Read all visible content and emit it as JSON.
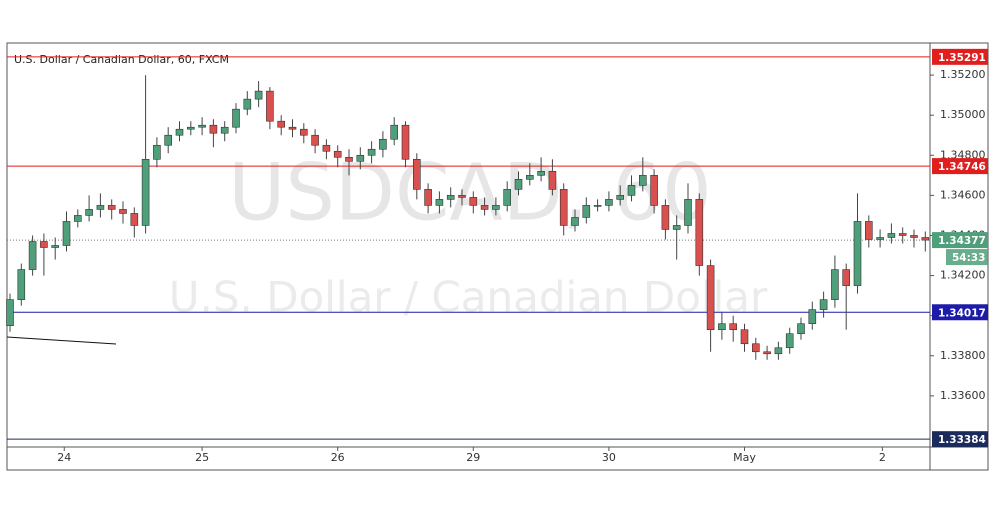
{
  "chart_data": {
    "type": "candlestick",
    "title": "U.S. Dollar / Canadian Dollar, 60, FXCM",
    "watermark": [
      "USDCAD, 60",
      "U.S. Dollar / Canadian Dollar"
    ],
    "up_color": "#4f9f7a",
    "down_color": "#d9504f",
    "ylim": [
      1.3335,
      1.3536
    ],
    "yticks": [
      {
        "value": 1.336,
        "label": "1.33600"
      },
      {
        "value": 1.338,
        "label": "1.33800"
      },
      {
        "value": 1.34,
        "label": "1.34000"
      },
      {
        "value": 1.342,
        "label": "1.34200"
      },
      {
        "value": 1.344,
        "label": "1.34400"
      },
      {
        "value": 1.346,
        "label": "1.34600"
      },
      {
        "value": 1.348,
        "label": "1.34800"
      },
      {
        "value": 1.35,
        "label": "1.35000"
      },
      {
        "value": 1.352,
        "label": "1.35200"
      }
    ],
    "xticks": [
      {
        "value": 4.8,
        "label": "24"
      },
      {
        "value": 17,
        "label": "25"
      },
      {
        "value": 29,
        "label": "26"
      },
      {
        "value": 41,
        "label": "29"
      },
      {
        "value": 53,
        "label": "30"
      },
      {
        "value": 65,
        "label": "May"
      },
      {
        "value": 77.2,
        "label": "2"
      }
    ],
    "grid": false,
    "levels": [
      {
        "value": 1.35291,
        "color": "#e01e1e"
      },
      {
        "value": 1.34746,
        "color": "#e01e1e"
      },
      {
        "value": 1.34017,
        "color": "#1c1ca8"
      },
      {
        "value": 1.33384,
        "color": "#1a2a5a"
      }
    ],
    "last_price": 1.34377,
    "last_color": "#4f9f7a",
    "countdown": "54:33",
    "open": [
      1.3395,
      1.3408,
      1.3423,
      1.3437,
      1.3434,
      1.3435,
      1.3447,
      1.345,
      1.3453,
      1.3455,
      1.3453,
      1.3451,
      1.3445,
      1.3478,
      1.3485,
      1.349,
      1.3493,
      1.3494,
      1.3495,
      1.3491,
      1.3494,
      1.3503,
      1.3508,
      1.3512,
      1.3497,
      1.3494,
      1.3493,
      1.349,
      1.3485,
      1.3482,
      1.3479,
      1.3477,
      1.348,
      1.3483,
      1.3488,
      1.3495,
      1.3478,
      1.3463,
      1.3455,
      1.3458,
      1.346,
      1.3459,
      1.3455,
      1.3453,
      1.3455,
      1.3463,
      1.3468,
      1.347,
      1.3472,
      1.3463,
      1.3445,
      1.3449,
      1.3455,
      1.3455,
      1.3458,
      1.346,
      1.3465,
      1.347,
      1.3455,
      1.3443,
      1.3445,
      1.3458,
      1.3425,
      1.3393,
      1.3396,
      1.3393,
      1.3386,
      1.3382,
      1.3381,
      1.3384,
      1.3391,
      1.3396,
      1.3403,
      1.3408,
      1.3423,
      1.3415,
      1.3447,
      1.3438,
      1.3439,
      1.3441,
      1.344,
      1.3439
    ],
    "high": [
      1.3411,
      1.3426,
      1.344,
      1.3441,
      1.3439,
      1.3452,
      1.3453,
      1.346,
      1.3461,
      1.3458,
      1.3457,
      1.3454,
      1.352,
      1.3489,
      1.3494,
      1.3497,
      1.3497,
      1.3499,
      1.3498,
      1.3497,
      1.3506,
      1.3512,
      1.3517,
      1.3514,
      1.35,
      1.3498,
      1.3496,
      1.3493,
      1.3488,
      1.3485,
      1.3483,
      1.3484,
      1.3487,
      1.3492,
      1.3499,
      1.3497,
      1.3481,
      1.3466,
      1.3462,
      1.3464,
      1.3463,
      1.3462,
      1.3459,
      1.3459,
      1.3467,
      1.3472,
      1.3476,
      1.3479,
      1.3478,
      1.3466,
      1.3453,
      1.3459,
      1.3458,
      1.3462,
      1.3465,
      1.347,
      1.3479,
      1.3473,
      1.3458,
      1.345,
      1.3466,
      1.3461,
      1.3428,
      1.3402,
      1.34,
      1.3396,
      1.3389,
      1.3385,
      1.3387,
      1.3394,
      1.3399,
      1.3407,
      1.3412,
      1.343,
      1.3426,
      1.3461,
      1.345,
      1.3443,
      1.3446,
      1.3444,
      1.3443,
      1.3442
    ],
    "low": [
      1.3392,
      1.3405,
      1.342,
      1.342,
      1.3428,
      1.3432,
      1.3444,
      1.3447,
      1.3449,
      1.3448,
      1.3446,
      1.3439,
      1.3441,
      1.3474,
      1.3481,
      1.3487,
      1.349,
      1.349,
      1.3484,
      1.3487,
      1.3491,
      1.35,
      1.3504,
      1.3493,
      1.349,
      1.3489,
      1.3486,
      1.3481,
      1.3478,
      1.3474,
      1.347,
      1.3473,
      1.3476,
      1.3479,
      1.3485,
      1.3474,
      1.3458,
      1.3451,
      1.3451,
      1.3454,
      1.3455,
      1.3451,
      1.345,
      1.345,
      1.3452,
      1.346,
      1.3465,
      1.3467,
      1.346,
      1.344,
      1.3442,
      1.3446,
      1.3452,
      1.3452,
      1.3455,
      1.3457,
      1.3462,
      1.3451,
      1.3438,
      1.3428,
      1.3441,
      1.342,
      1.3382,
      1.3388,
      1.3387,
      1.3382,
      1.3378,
      1.3378,
      1.3378,
      1.3381,
      1.3388,
      1.3393,
      1.3399,
      1.3404,
      1.3393,
      1.3411,
      1.3434,
      1.3434,
      1.3436,
      1.3436,
      1.3434,
      1.3432
    ],
    "close": [
      1.3408,
      1.3423,
      1.3437,
      1.3434,
      1.3435,
      1.3447,
      1.345,
      1.3453,
      1.3455,
      1.3453,
      1.3451,
      1.3445,
      1.3478,
      1.3485,
      1.349,
      1.3493,
      1.3494,
      1.3495,
      1.3491,
      1.3494,
      1.3503,
      1.3508,
      1.3512,
      1.3497,
      1.3494,
      1.3493,
      1.349,
      1.3485,
      1.3482,
      1.3479,
      1.3477,
      1.348,
      1.3483,
      1.3488,
      1.3495,
      1.3478,
      1.3463,
      1.3455,
      1.3458,
      1.346,
      1.3459,
      1.3455,
      1.3453,
      1.3455,
      1.3463,
      1.3468,
      1.347,
      1.3472,
      1.3463,
      1.3445,
      1.3449,
      1.3455,
      1.3455,
      1.3458,
      1.346,
      1.3465,
      1.347,
      1.3455,
      1.3443,
      1.3445,
      1.3458,
      1.3425,
      1.3393,
      1.3396,
      1.3393,
      1.3386,
      1.3382,
      1.3381,
      1.3384,
      1.3391,
      1.3396,
      1.3403,
      1.3408,
      1.3423,
      1.3415,
      1.3447,
      1.3438,
      1.3439,
      1.3441,
      1.344,
      1.3439,
      1.34377
    ]
  }
}
